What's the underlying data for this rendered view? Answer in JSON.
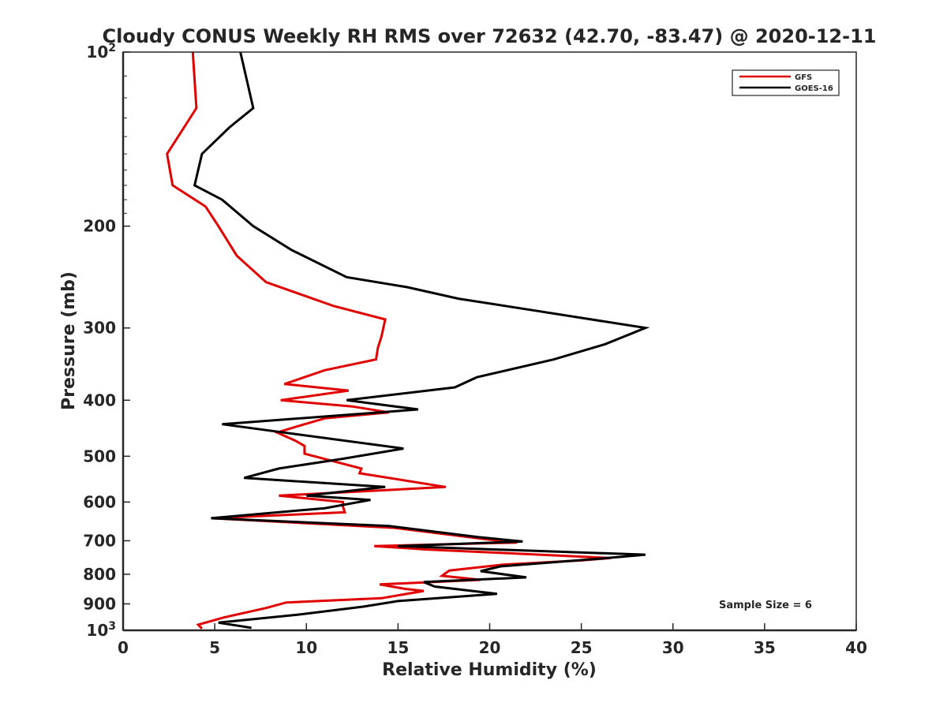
{
  "chart_data": {
    "type": "line",
    "title": "Cloudy CONUS Weekly RH RMS over 72632 (42.70, -83.47) @ 2020-12-11",
    "xlabel": "Relative Humidity (%)",
    "ylabel": "Pressure (mb)",
    "xlim": [
      0,
      40
    ],
    "ylim": [
      1000,
      100
    ],
    "y_scale": "log",
    "y_reversed": true,
    "grid": false,
    "legend_position": "top-right",
    "x_ticks": [
      "0",
      "5",
      "10",
      "15",
      "20",
      "25",
      "30",
      "35",
      "40"
    ],
    "y_ticks": [
      {
        "value": 100,
        "base": "10",
        "exp": "2"
      },
      {
        "value": 200,
        "label": "200"
      },
      {
        "value": 300,
        "label": "300"
      },
      {
        "value": 400,
        "label": "400"
      },
      {
        "value": 500,
        "label": "500"
      },
      {
        "value": 600,
        "label": "600"
      },
      {
        "value": 700,
        "label": "700"
      },
      {
        "value": 800,
        "label": "800"
      },
      {
        "value": 900,
        "label": "900"
      },
      {
        "value": 1000,
        "base": "10",
        "exp": "3"
      }
    ],
    "annotation": "Sample Size = 6",
    "series": [
      {
        "name": "GFS",
        "color": "#e00000",
        "points": [
          [
            3.8,
            100
          ],
          [
            4.0,
            125
          ],
          [
            2.4,
            150
          ],
          [
            2.7,
            170
          ],
          [
            4.5,
            185
          ],
          [
            5.2,
            200
          ],
          [
            6.2,
            225
          ],
          [
            7.8,
            250
          ],
          [
            11.5,
            275
          ],
          [
            14.3,
            290
          ],
          [
            14.1,
            310
          ],
          [
            13.9,
            325
          ],
          [
            13.8,
            340
          ],
          [
            11.0,
            355
          ],
          [
            8.8,
            375
          ],
          [
            12.3,
            385
          ],
          [
            8.6,
            400
          ],
          [
            12.5,
            410
          ],
          [
            14.5,
            420
          ],
          [
            11.0,
            430
          ],
          [
            9.4,
            445
          ],
          [
            8.4,
            455
          ],
          [
            9.4,
            470
          ],
          [
            9.9,
            480
          ],
          [
            9.9,
            495
          ],
          [
            13.0,
            525
          ],
          [
            12.9,
            535
          ],
          [
            17.6,
            565
          ],
          [
            8.5,
            585
          ],
          [
            12.0,
            600
          ],
          [
            12.0,
            612
          ],
          [
            12.1,
            625
          ],
          [
            4.8,
            640
          ],
          [
            14.8,
            665
          ],
          [
            19.7,
            695
          ],
          [
            21.5,
            705
          ],
          [
            13.7,
            715
          ],
          [
            16.6,
            725
          ],
          [
            20.8,
            735
          ],
          [
            26.6,
            750
          ],
          [
            25.0,
            757
          ],
          [
            20.7,
            770
          ],
          [
            17.8,
            788
          ],
          [
            17.4,
            805
          ],
          [
            19.5,
            818
          ],
          [
            14.0,
            833
          ],
          [
            15.4,
            848
          ],
          [
            16.4,
            855
          ],
          [
            14.1,
            880
          ],
          [
            8.9,
            895
          ],
          [
            7.8,
            915
          ],
          [
            5.5,
            950
          ],
          [
            4.1,
            978
          ],
          [
            4.3,
            993
          ]
        ]
      },
      {
        "name": "GOES-16",
        "color": "#000000",
        "points": [
          [
            6.4,
            100
          ],
          [
            7.1,
            125
          ],
          [
            5.8,
            135
          ],
          [
            4.3,
            150
          ],
          [
            3.9,
            170
          ],
          [
            5.4,
            180
          ],
          [
            7.1,
            200
          ],
          [
            9.2,
            220
          ],
          [
            12.2,
            245
          ],
          [
            15.5,
            255
          ],
          [
            18.3,
            267
          ],
          [
            22.5,
            280
          ],
          [
            28.5,
            300
          ],
          [
            26.3,
            320
          ],
          [
            23.5,
            340
          ],
          [
            19.3,
            365
          ],
          [
            18.1,
            380
          ],
          [
            12.2,
            400
          ],
          [
            16.1,
            415
          ],
          [
            5.4,
            440
          ],
          [
            15.3,
            485
          ],
          [
            12.0,
            505
          ],
          [
            8.5,
            525
          ],
          [
            6.6,
            545
          ],
          [
            14.3,
            565
          ],
          [
            10.0,
            585
          ],
          [
            13.5,
            595
          ],
          [
            11.0,
            615
          ],
          [
            4.8,
            640
          ],
          [
            14.5,
            660
          ],
          [
            19.4,
            690
          ],
          [
            21.8,
            702
          ],
          [
            15.0,
            715
          ],
          [
            20.4,
            725
          ],
          [
            28.5,
            740
          ],
          [
            26.4,
            750
          ],
          [
            20.6,
            775
          ],
          [
            19.5,
            790
          ],
          [
            22.0,
            810
          ],
          [
            16.4,
            825
          ],
          [
            17.0,
            840
          ],
          [
            20.4,
            865
          ],
          [
            15.0,
            890
          ],
          [
            13.1,
            910
          ],
          [
            9.5,
            940
          ],
          [
            5.2,
            970
          ],
          [
            7.0,
            990
          ]
        ]
      }
    ]
  }
}
